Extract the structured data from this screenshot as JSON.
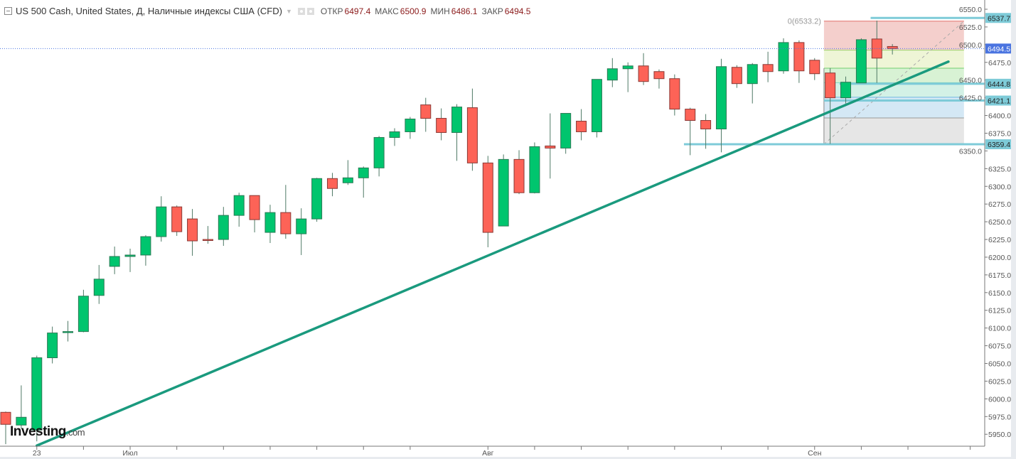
{
  "header": {
    "title": "US 500 Cash, United States, Д, Наличные индексы США (CFD)",
    "open_label": "ОТКР",
    "open": "6497.4",
    "high_label": "МАКС",
    "high": "6500.9",
    "low_label": "МИН",
    "low": "6486.1",
    "close_label": "ЗАКР",
    "close": "6494.5"
  },
  "logo": {
    "brand": "Investing",
    "suffix": ".com"
  },
  "colors": {
    "up": "#00c56e",
    "down": "#fd6357",
    "trend": "#1a9a7e",
    "hline": "#7ecbd8",
    "price": "#4a74e0"
  },
  "chart_data": {
    "type": "candlestick",
    "title": "US 500 Cash, United States, Д",
    "ylim": [
      5935,
      6560
    ],
    "yticks": [
      5950,
      5975,
      6000,
      6025,
      6050,
      6075,
      6100,
      6125,
      6150,
      6175,
      6200,
      6225,
      6250,
      6275,
      6300,
      6325,
      6350,
      6375,
      6400,
      6425,
      6450,
      6475,
      6500,
      6525,
      6550
    ],
    "xticks": [
      2,
      5,
      8,
      11,
      14,
      17,
      20,
      23,
      26,
      31,
      34,
      37,
      40,
      43,
      46,
      49,
      52,
      55,
      58,
      62
    ],
    "xlabels": [
      {
        "index": 2,
        "text": "23"
      },
      {
        "index": 8,
        "text": "Июл"
      },
      {
        "index": 31,
        "text": "Авг"
      },
      {
        "index": 52,
        "text": "Сен"
      }
    ],
    "ohlc": [
      [
        5981,
        5982,
        5935,
        5964
      ],
      [
        5963,
        6019,
        5958,
        5974
      ],
      [
        5956,
        6061,
        5940,
        6058
      ],
      [
        6058,
        6102,
        6050,
        6093
      ],
      [
        6094,
        6110,
        6081,
        6095
      ],
      [
        6095,
        6154,
        6094,
        6145
      ],
      [
        6146,
        6189,
        6134,
        6169
      ],
      [
        6187,
        6215,
        6176,
        6201
      ],
      [
        6201,
        6212,
        6179,
        6203
      ],
      [
        6203,
        6231,
        6188,
        6229
      ],
      [
        6229,
        6286,
        6222,
        6271
      ],
      [
        6271,
        6273,
        6230,
        6236
      ],
      [
        6254,
        6268,
        6202,
        6223
      ],
      [
        6225,
        6244,
        6219,
        6224
      ],
      [
        6225,
        6271,
        6216,
        6259
      ],
      [
        6259,
        6291,
        6243,
        6287
      ],
      [
        6287,
        6287,
        6235,
        6253
      ],
      [
        6235,
        6274,
        6220,
        6263
      ],
      [
        6263,
        6302,
        6226,
        6233
      ],
      [
        6233,
        6269,
        6203,
        6254
      ],
      [
        6254,
        6312,
        6250,
        6311
      ],
      [
        6311,
        6319,
        6286,
        6297
      ],
      [
        6305,
        6337,
        6302,
        6312
      ],
      [
        6312,
        6328,
        6284,
        6326
      ],
      [
        6326,
        6371,
        6314,
        6369
      ],
      [
        6369,
        6382,
        6357,
        6377
      ],
      [
        6377,
        6398,
        6367,
        6395
      ],
      [
        6415,
        6425,
        6377,
        6396
      ],
      [
        6396,
        6410,
        6365,
        6376
      ],
      [
        6376,
        6416,
        6336,
        6412
      ],
      [
        6411,
        6438,
        6322,
        6333
      ],
      [
        6333,
        6343,
        6214,
        6235
      ],
      [
        6244,
        6345,
        6244,
        6338
      ],
      [
        6338,
        6351,
        6289,
        6291
      ],
      [
        6291,
        6362,
        6290,
        6356
      ],
      [
        6357,
        6403,
        6311,
        6354
      ],
      [
        6354,
        6403,
        6346,
        6403
      ],
      [
        6392,
        6409,
        6365,
        6377
      ],
      [
        6377,
        6451,
        6369,
        6451
      ],
      [
        6450,
        6481,
        6440,
        6466
      ],
      [
        6466,
        6475,
        6433,
        6470
      ],
      [
        6470,
        6488,
        6443,
        6448
      ],
      [
        6462,
        6465,
        6438,
        6452
      ],
      [
        6452,
        6458,
        6400,
        6409
      ],
      [
        6409,
        6411,
        6344,
        6393
      ],
      [
        6393,
        6402,
        6353,
        6381
      ],
      [
        6381,
        6480,
        6348,
        6469
      ],
      [
        6468,
        6471,
        6439,
        6445
      ],
      [
        6445,
        6474,
        6417,
        6472
      ],
      [
        6472,
        6490,
        6447,
        6462
      ],
      [
        6463,
        6509,
        6459,
        6503
      ],
      [
        6503,
        6506,
        6446,
        6463
      ],
      [
        6478,
        6481,
        6450,
        6459
      ],
      [
        6460,
        6467,
        6360,
        6425
      ],
      [
        6425,
        6455,
        6417,
        6447
      ],
      [
        6446,
        6509,
        6446,
        6507
      ],
      [
        6508,
        6534,
        6446,
        6481
      ],
      [
        6497.4,
        6500.9,
        6486.1,
        6494.5
      ]
    ],
    "current_price": {
      "value": 6494.5,
      "label": "6494.5"
    },
    "trendline": {
      "from": [
        2,
        5934
      ],
      "to": [
        60.6,
        6476
      ]
    },
    "hlines": [
      {
        "value": 6537.7,
        "label": "6537.7",
        "from_index": 55.6
      },
      {
        "value": 6444.8,
        "label": "6444.8",
        "from_index": 53.6
      },
      {
        "value": 6421.1,
        "label": "6421.1",
        "from_index": 52.6
      },
      {
        "value": 6359.4,
        "label": "6359.4",
        "from_index": 43.6
      }
    ],
    "fibonacci": {
      "from_index": 52.6,
      "to_index": 61.6,
      "low": 6359.4,
      "high": 6533.2,
      "label": "0(6533.2)",
      "levels": [
        0,
        0.236,
        0.382,
        0.5,
        0.618,
        0.786,
        1
      ],
      "band_colors": [
        "#f4cfcc",
        "#eef5d6",
        "#d8f2d4",
        "#d3f1e6",
        "#d4e8f5",
        "#e6e6e6"
      ],
      "line_colors": [
        "#e0706a",
        "#9fd56f",
        "#6fcf6f",
        "#7fd8bf",
        "#6fb8e0",
        "#999999"
      ]
    }
  }
}
